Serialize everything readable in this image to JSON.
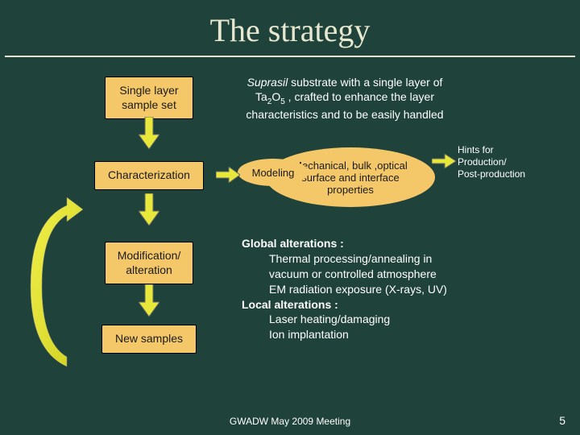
{
  "colors": {
    "background": "#1f423a",
    "box_fill": "#f4c869",
    "arrow_fill": "#e8e83a",
    "text_light": "#e8e8d0",
    "text_white": "#ffffff",
    "text_dark": "#1a1a1a"
  },
  "title": "The strategy",
  "steps": {
    "box1": {
      "line1": "Single layer",
      "line2": "sample set"
    },
    "box2": {
      "line1": "Characterization"
    },
    "box3": {
      "line1": "Modification/",
      "line2": "alteration"
    },
    "box4": {
      "line1": "New samples"
    }
  },
  "desc1": {
    "text_html": "<span class=\"italic\">Suprasil</span> substrate with a single layer of Ta<span class=\"sub\">2</span>O<span class=\"sub\">5</span> , crafted to enhance the layer characteristics and to be easily handled"
  },
  "bubble_mech": {
    "text_html": "Mechanical, bulk ,optical<br>surface and interface<br>properties"
  },
  "bubble_model": {
    "text": "Modeling"
  },
  "hints": {
    "line1": "Hints for",
    "line2": "Production/",
    "line3": "Post-production"
  },
  "list": {
    "g1_title": "Global alterations :",
    "g1_i1": "Thermal processing/annealing in",
    "g1_i1b": "vacuum or controlled atmosphere",
    "g1_i2": "EM radiation exposure (X-rays, UV)",
    "g2_title": "Local alterations :",
    "g2_i1": "Laser heating/damaging",
    "g2_i2": "Ion implantation"
  },
  "footer": {
    "center": "GWADW May 2009 Meeting",
    "pagenum": "5"
  }
}
